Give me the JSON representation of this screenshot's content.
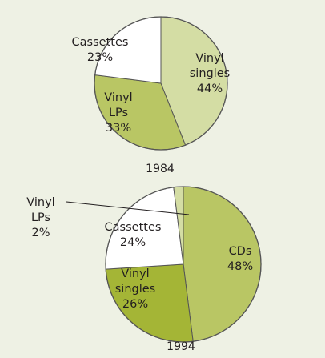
{
  "chart_data": [
    {
      "type": "pie",
      "title": "1984",
      "slices": [
        {
          "label": [
            "Vinyl",
            "singles"
          ],
          "value": 44,
          "value_label": "44%",
          "color": "#d4dda4"
        },
        {
          "label": [
            "Vinyl",
            "LPs"
          ],
          "value": 33,
          "value_label": "33%",
          "color": "#b9c664"
        },
        {
          "label": [
            "Cassettes"
          ],
          "value": 23,
          "value_label": "23%",
          "color": "#ffffff"
        }
      ]
    },
    {
      "type": "pie",
      "title": "1994",
      "slices": [
        {
          "label": [
            "CDs"
          ],
          "value": 48,
          "value_label": "48%",
          "color": "#b9c664"
        },
        {
          "label": [
            "Vinyl",
            "singles"
          ],
          "value": 26,
          "value_label": "26%",
          "color": "#a4b536"
        },
        {
          "label": [
            "Cassettes"
          ],
          "value": 24,
          "value_label": "24%",
          "color": "#ffffff"
        },
        {
          "label": [
            "Vinyl",
            "LPs"
          ],
          "value": 2,
          "value_label": "2%",
          "color": "#d4dda4"
        }
      ]
    }
  ],
  "colors": {
    "outline": "#555555",
    "text": "#231f20",
    "background": "#eef1e4"
  }
}
